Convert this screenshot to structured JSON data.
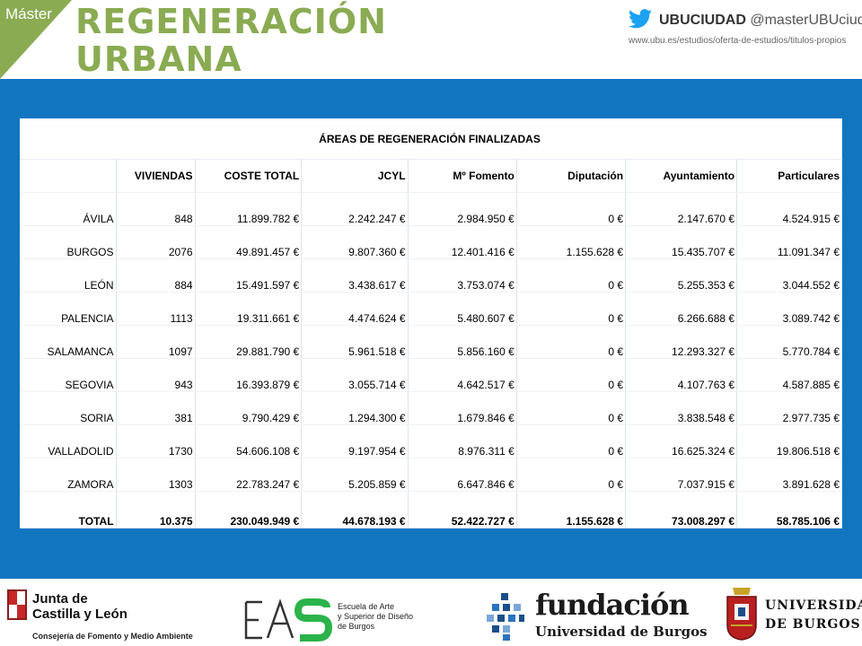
{
  "header": {
    "master": "Máster",
    "title_line1": "REGENERACIÓN",
    "title_line2": "URBANA",
    "handle_bold": "UBUCIUDAD",
    "handle_rest": "@masterUBUciudad",
    "url": "www.ubu.es/estudios/oferta-de-estudios/titulos-propios",
    "accent": "#8aab52"
  },
  "table": {
    "title": "ÁREAS DE REGENERACIÓN FINALIZADAS",
    "columns": [
      "",
      "VIVIENDAS",
      "COSTE TOTAL",
      "JCYL",
      "Mº Fomento",
      "Diputación",
      "Ayuntamiento",
      "Particulares"
    ],
    "rows": [
      [
        "ÁVILA",
        "848",
        "11.899.782 €",
        "2.242.247 €",
        "2.984.950 €",
        "0 €",
        "2.147.670 €",
        "4.524.915 €"
      ],
      [
        "BURGOS",
        "2076",
        "49.891.457 €",
        "9.807.360 €",
        "12.401.416 €",
        "1.155.628 €",
        "15.435.707 €",
        "11.091.347 €"
      ],
      [
        "LEÓN",
        "884",
        "15.491.597 €",
        "3.438.617 €",
        "3.753.074 €",
        "0 €",
        "5.255.353 €",
        "3.044.552 €"
      ],
      [
        "PALENCIA",
        "1113",
        "19.311.661 €",
        "4.474.624 €",
        "5.480.607 €",
        "0 €",
        "6.266.688 €",
        "3.089.742 €"
      ],
      [
        "SALAMANCA",
        "1097",
        "29.881.790 €",
        "5.961.518 €",
        "5.856.160 €",
        "0 €",
        "12.293.327 €",
        "5.770.784 €"
      ],
      [
        "SEGOVIA",
        "943",
        "16.393.879 €",
        "3.055.714 €",
        "4.642.517 €",
        "0 €",
        "4.107.763 €",
        "4.587.885 €"
      ],
      [
        "SORIA",
        "381",
        "9.790.429 €",
        "1.294.300 €",
        "1.679.846 €",
        "0 €",
        "3.838.548 €",
        "2.977.735 €"
      ],
      [
        "VALLADOLID",
        "1730",
        "54.606.108 €",
        "9.197.954 €",
        "8.976.311 €",
        "0 €",
        "16.625.324 €",
        "19.806.518 €"
      ],
      [
        "ZAMORA",
        "1303",
        "22.783.247 €",
        "5.205.859 €",
        "6.647.846 €",
        "0 €",
        "7.037.915 €",
        "3.891.628 €"
      ]
    ],
    "total": [
      "TOTAL",
      "10.375",
      "230.049.949 €",
      "44.678.193 €",
      "52.422.727 €",
      "1.155.628 €",
      "73.008.297 €",
      "58.785.106 €"
    ]
  },
  "footer": {
    "jcl_line1": "Junta de",
    "jcl_line2": "Castilla y León",
    "jcl_sub": "Consejería de Fomento y Medio Ambiente",
    "eas_line1": "Escuela de Arte",
    "eas_line2": "y Superior de Diseño",
    "eas_line3": "de Burgos",
    "fund_line1": "fundación",
    "fund_line2": "Universidad de Burgos",
    "ubu_line1": "UNIVERSIDAD",
    "ubu_line2": "DE BURGOS"
  },
  "colors": {
    "background_band": "#1275c0",
    "accent_green": "#8aab52"
  }
}
